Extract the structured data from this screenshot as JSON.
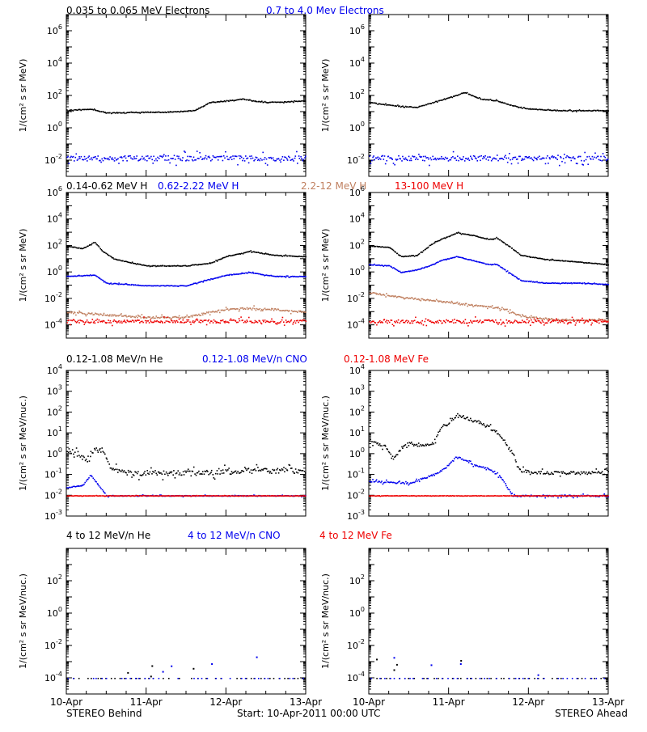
{
  "colors": {
    "black": "#000000",
    "blue": "#0000ee",
    "tan": "#c08060",
    "red": "#ee0000"
  },
  "footer": {
    "left": "STEREO Behind",
    "center": "Start: 10-Apr-2011 00:00 UTC",
    "right": "STEREO Ahead"
  },
  "rows": [
    {
      "legend": [
        {
          "text": "0.035 to 0.065 MeV Electrons",
          "color": "#000000"
        },
        {
          "text": "0.7 to 4.0 Mev Electrons",
          "color": "#0000ee"
        }
      ]
    },
    {
      "legend": [
        {
          "text": "0.14-0.62 MeV H",
          "color": "#000000"
        },
        {
          "text": "0.62-2.22 MeV H",
          "color": "#0000ee"
        },
        {
          "text": "2.2-12 MeV H",
          "color": "#c08060"
        },
        {
          "text": "13-100 MeV H",
          "color": "#ee0000"
        }
      ]
    },
    {
      "legend": [
        {
          "text": "0.12-1.08 MeV/n He",
          "color": "#000000"
        },
        {
          "text": "0.12-1.08 MeV/n CNO",
          "color": "#0000ee"
        },
        {
          "text": "0.12-1.08 MeV Fe",
          "color": "#ee0000"
        }
      ]
    },
    {
      "legend": [
        {
          "text": "4 to 12 MeV/n He",
          "color": "#000000"
        },
        {
          "text": "4 to 12 MeV/n CNO",
          "color": "#0000ee"
        },
        {
          "text": "4 to 12 MeV Fe",
          "color": "#ee0000"
        }
      ]
    }
  ],
  "chart_data": [
    {
      "type": "scatter",
      "panel": "behind-electrons",
      "row": 0,
      "col": 0,
      "ylabel": "1/(cm² s sr MeV)",
      "yscale": "log",
      "ylim_exp": [
        -3,
        7
      ],
      "ytick_exps": [
        -2,
        0,
        2,
        4,
        6
      ],
      "x_range_days": [
        0,
        3
      ],
      "xtick_labels": [
        "10-Apr",
        "11-Apr",
        "12-Apr",
        "13-Apr"
      ],
      "series": [
        {
          "name": "0.035 to 0.065 MeV Electrons",
          "color": "#000000",
          "x": [
            0,
            0.3,
            0.5,
            1.0,
            1.3,
            1.6,
            1.8,
            2.2,
            2.5,
            2.8,
            3.0
          ],
          "log10y": [
            1.1,
            1.2,
            0.95,
            1.0,
            1.0,
            1.1,
            1.6,
            1.8,
            1.6,
            1.65,
            1.7
          ]
        },
        {
          "name": "0.7 to 4.0 Mev Electrons",
          "color": "#0000ee",
          "x": [
            0,
            3
          ],
          "log10y": [
            -1.85,
            -1.85
          ],
          "scatter": 0.45
        }
      ]
    },
    {
      "type": "scatter",
      "panel": "ahead-electrons",
      "row": 0,
      "col": 1,
      "ylabel": "1/(cm² s sr MeV)",
      "yscale": "log",
      "ylim_exp": [
        -3,
        7
      ],
      "ytick_exps": [
        -2,
        0,
        2,
        4,
        6
      ],
      "x_range_days": [
        0,
        3
      ],
      "xtick_labels": [
        "10-Apr",
        "11-Apr",
        "12-Apr",
        "13-Apr"
      ],
      "series": [
        {
          "name": "0.035 to 0.065 MeV Electrons",
          "color": "#000000",
          "x": [
            0,
            0.3,
            0.6,
            0.8,
            1.0,
            1.2,
            1.4,
            1.6,
            1.8,
            2.0,
            2.4,
            2.8,
            3.0
          ],
          "log10y": [
            1.6,
            1.4,
            1.3,
            1.6,
            1.9,
            2.2,
            1.8,
            1.7,
            1.4,
            1.2,
            1.1,
            1.1,
            1.1
          ]
        },
        {
          "name": "0.7 to 4.0 Mev Electrons",
          "color": "#0000ee",
          "x": [
            0,
            3
          ],
          "log10y": [
            -1.85,
            -1.85
          ],
          "scatter": 0.45
        }
      ]
    },
    {
      "type": "scatter",
      "panel": "behind-protons",
      "row": 1,
      "col": 0,
      "ylabel": "1/(cm² s sr MeV)",
      "yscale": "log",
      "ylim_exp": [
        -5,
        6
      ],
      "ytick_exps": [
        -4,
        -2,
        0,
        2,
        4,
        6
      ],
      "x_range_days": [
        0,
        3
      ],
      "xtick_labels": [
        "10-Apr",
        "11-Apr",
        "12-Apr",
        "13-Apr"
      ],
      "series": [
        {
          "name": "0.14-0.62 MeV H",
          "color": "#000000",
          "x": [
            0,
            0.2,
            0.35,
            0.45,
            0.6,
            1.0,
            1.5,
            1.8,
            2.0,
            2.3,
            2.6,
            3.0
          ],
          "log10y": [
            2.0,
            1.8,
            2.3,
            1.6,
            1.0,
            0.5,
            0.5,
            0.7,
            1.2,
            1.6,
            1.3,
            1.2
          ]
        },
        {
          "name": "0.62-2.22 MeV H",
          "color": "#0000ee",
          "x": [
            0,
            0.35,
            0.5,
            1.0,
            1.5,
            1.8,
            2.0,
            2.3,
            2.6,
            3.0
          ],
          "log10y": [
            -0.3,
            -0.2,
            -0.8,
            -1.0,
            -1.0,
            -0.5,
            -0.2,
            0.0,
            -0.3,
            -0.3
          ]
        },
        {
          "name": "2.2-12 MeV H",
          "color": "#c08060",
          "x": [
            0,
            0.5,
            1.0,
            1.5,
            1.8,
            2.0,
            2.3,
            2.6,
            3.0
          ],
          "log10y": [
            -3.0,
            -3.2,
            -3.4,
            -3.4,
            -3.0,
            -2.8,
            -2.7,
            -2.8,
            -3.0
          ],
          "scatter": 0.2
        },
        {
          "name": "13-100 MeV H",
          "color": "#ee0000",
          "x": [
            0,
            3
          ],
          "log10y": [
            -3.7,
            -3.7
          ],
          "scatter": 0.35
        }
      ]
    },
    {
      "type": "scatter",
      "panel": "ahead-protons",
      "row": 1,
      "col": 1,
      "ylabel": "1/(cm² s sr MeV)",
      "yscale": "log",
      "ylim_exp": [
        -5,
        6
      ],
      "ytick_exps": [
        -4,
        -2,
        0,
        2,
        4,
        6
      ],
      "x_range_days": [
        0,
        3
      ],
      "xtick_labels": [
        "10-Apr",
        "11-Apr",
        "12-Apr",
        "13-Apr"
      ],
      "series": [
        {
          "name": "0.14-0.62 MeV H",
          "color": "#000000",
          "x": [
            0,
            0.25,
            0.4,
            0.6,
            0.8,
            0.9,
            1.1,
            1.3,
            1.5,
            1.6,
            1.75,
            1.9,
            2.2,
            2.6,
            3.0
          ],
          "log10y": [
            2.0,
            1.9,
            1.2,
            1.3,
            2.2,
            2.5,
            3.0,
            2.8,
            2.5,
            2.6,
            2.0,
            1.3,
            1.0,
            0.8,
            0.6
          ]
        },
        {
          "name": "0.62-2.22 MeV H",
          "color": "#0000ee",
          "x": [
            0,
            0.25,
            0.4,
            0.6,
            0.8,
            0.9,
            1.1,
            1.3,
            1.5,
            1.6,
            1.75,
            1.9,
            2.2,
            2.6,
            3.0
          ],
          "log10y": [
            0.6,
            0.5,
            0.0,
            0.2,
            0.6,
            0.9,
            1.2,
            0.9,
            0.6,
            0.6,
            0.0,
            -0.6,
            -0.8,
            -0.8,
            -0.9
          ]
        },
        {
          "name": "2.2-12 MeV H",
          "color": "#c08060",
          "x": [
            0,
            0.3,
            0.6,
            0.9,
            1.2,
            1.5,
            1.7,
            1.9,
            2.2,
            2.6,
            3.0
          ],
          "log10y": [
            -1.5,
            -1.8,
            -2.0,
            -2.2,
            -2.4,
            -2.6,
            -2.8,
            -3.3,
            -3.5,
            -3.6,
            -3.6
          ],
          "scatter": 0.15
        },
        {
          "name": "13-100 MeV H",
          "color": "#ee0000",
          "x": [
            0,
            3
          ],
          "log10y": [
            -3.7,
            -3.7
          ],
          "scatter": 0.35
        }
      ]
    },
    {
      "type": "scatter",
      "panel": "behind-heavy",
      "row": 2,
      "col": 0,
      "ylabel": "1/(cm² s sr MeV/nuc.)",
      "yscale": "log",
      "ylim_exp": [
        -3,
        4
      ],
      "ytick_exps": [
        -3,
        -2,
        -1,
        0,
        1,
        2,
        3,
        4
      ],
      "x_range_days": [
        0,
        3
      ],
      "xtick_labels": [
        "10-Apr",
        "11-Apr",
        "12-Apr",
        "13-Apr"
      ],
      "series": [
        {
          "name": "0.12-1.08 MeV/n He",
          "color": "#000000",
          "x": [
            0,
            0.15,
            0.25,
            0.35,
            0.45,
            0.55,
            0.7,
            1.0,
            1.5,
            1.8,
            2.2,
            2.6,
            3.0
          ],
          "log10y": [
            0.2,
            0.0,
            -0.3,
            0.3,
            0.1,
            -0.6,
            -0.9,
            -0.9,
            -0.9,
            -0.9,
            -0.8,
            -0.8,
            -0.8
          ],
          "scatter": 0.35
        },
        {
          "name": "0.12-1.08 MeV/n CNO",
          "color": "#0000ee",
          "x": [
            0,
            0.2,
            0.3,
            0.5,
            3.0
          ],
          "log10y": [
            -1.6,
            -1.5,
            -1.0,
            -2.0,
            -2.0
          ],
          "scatter": 0.05
        },
        {
          "name": "0.12-1.08 MeV Fe",
          "color": "#ee0000",
          "x": [
            0,
            3
          ],
          "log10y": [
            -2.0,
            -2.0
          ],
          "scatter": 0.02
        }
      ]
    },
    {
      "type": "scatter",
      "panel": "ahead-heavy",
      "row": 2,
      "col": 1,
      "ylabel": "1/(cm² s sr MeV/nuc.)",
      "yscale": "log",
      "ylim_exp": [
        -3,
        4
      ],
      "ytick_exps": [
        -3,
        -2,
        -1,
        0,
        1,
        2,
        3,
        4
      ],
      "x_range_days": [
        0,
        3
      ],
      "xtick_labels": [
        "10-Apr",
        "11-Apr",
        "12-Apr",
        "13-Apr"
      ],
      "series": [
        {
          "name": "0.12-1.08 MeV/n He",
          "color": "#000000",
          "x": [
            0,
            0.2,
            0.3,
            0.45,
            0.6,
            0.8,
            0.9,
            1.0,
            1.1,
            1.25,
            1.5,
            1.65,
            1.8,
            1.9,
            2.2,
            2.6,
            3.0
          ],
          "log10y": [
            0.6,
            0.4,
            -0.2,
            0.5,
            0.4,
            0.5,
            1.3,
            1.5,
            1.9,
            1.7,
            1.3,
            0.9,
            0.0,
            -0.8,
            -0.9,
            -0.9,
            -0.9
          ],
          "scatter": 0.2
        },
        {
          "name": "0.12-1.08 MeV/n CNO",
          "color": "#0000ee",
          "x": [
            0,
            0.5,
            0.8,
            0.9,
            1.0,
            1.1,
            1.3,
            1.5,
            1.65,
            1.8,
            3.0
          ],
          "log10y": [
            -1.3,
            -1.4,
            -1.0,
            -0.8,
            -0.5,
            -0.1,
            -0.5,
            -0.7,
            -1.1,
            -2.0,
            -2.0
          ],
          "scatter": 0.1
        },
        {
          "name": "0.12-1.08 MeV Fe",
          "color": "#ee0000",
          "x": [
            0,
            3
          ],
          "log10y": [
            -2.0,
            -2.0
          ],
          "scatter": 0.02
        }
      ]
    },
    {
      "type": "scatter",
      "panel": "behind-high-heavy",
      "row": 3,
      "col": 0,
      "ylabel": "1/(cm² s sr MeV/nuc.)",
      "yscale": "log",
      "ylim_exp": [
        -5,
        4
      ],
      "ytick_exps": [
        -4,
        -2,
        0,
        2
      ],
      "x_range_days": [
        0,
        3
      ],
      "xtick_labels": [
        "10-Apr",
        "11-Apr",
        "12-Apr",
        "13-Apr"
      ],
      "series": [
        {
          "name": "4 to 12 MeV/n He",
          "color": "#000000",
          "x": [
            0,
            3
          ],
          "log10y": [
            -4.0,
            -4.0
          ],
          "scatter": 0.0,
          "sparse": true
        },
        {
          "name": "4 to 12 MeV/n CNO",
          "color": "#0000ee",
          "x": [
            0,
            3
          ],
          "log10y": [
            -4.0,
            -4.0
          ],
          "scatter": 0.0,
          "sparse": true
        }
      ]
    },
    {
      "type": "scatter",
      "panel": "ahead-high-heavy",
      "row": 3,
      "col": 1,
      "ylabel": "1/(cm² s sr MeV/nuc.)",
      "yscale": "log",
      "ylim_exp": [
        -5,
        4
      ],
      "ytick_exps": [
        -4,
        -2,
        0,
        2
      ],
      "x_range_days": [
        0,
        3
      ],
      "xtick_labels": [
        "10-Apr",
        "11-Apr",
        "12-Apr",
        "13-Apr"
      ],
      "series": [
        {
          "name": "4 to 12 MeV/n He",
          "color": "#000000",
          "x": [
            0,
            3
          ],
          "log10y": [
            -4.0,
            -4.0
          ],
          "scatter": 0.0,
          "sparse": true
        },
        {
          "name": "4 to 12 MeV/n CNO",
          "color": "#0000ee",
          "x": [
            0,
            3
          ],
          "log10y": [
            -4.0,
            -4.0
          ],
          "scatter": 0.0,
          "sparse": true
        }
      ]
    }
  ]
}
